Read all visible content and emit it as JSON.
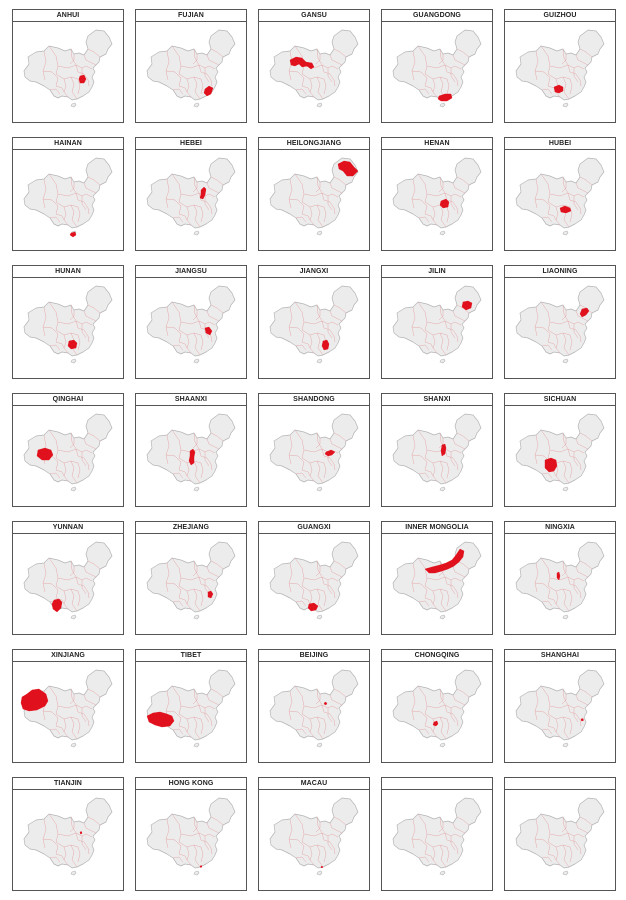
{
  "colors": {
    "land": "#ececec",
    "border": "#e4a0a4",
    "outline": "#b4b4b4",
    "highlight": "#e0101c",
    "frame": "#555555"
  },
  "maps": [
    {
      "name": "ANHUI",
      "region": "anhui"
    },
    {
      "name": "FUJIAN",
      "region": "fujian"
    },
    {
      "name": "GANSU",
      "region": "gansu"
    },
    {
      "name": "GUANGDONG",
      "region": "guangdong"
    },
    {
      "name": "GUIZHOU",
      "region": "guizhou"
    },
    {
      "name": "HAINAN",
      "region": "hainan"
    },
    {
      "name": "HEBEI",
      "region": "hebei"
    },
    {
      "name": "HEILONGJIANG",
      "region": "heilongjiang"
    },
    {
      "name": "HENAN",
      "region": "henan"
    },
    {
      "name": "HUBEI",
      "region": "hubei"
    },
    {
      "name": "HUNAN",
      "region": "hunan"
    },
    {
      "name": "JIANGSU",
      "region": "jiangsu"
    },
    {
      "name": "JIANGXI",
      "region": "jiangxi"
    },
    {
      "name": "JILIN",
      "region": "jilin"
    },
    {
      "name": "LIAONING",
      "region": "liaoning"
    },
    {
      "name": "QINGHAI",
      "region": "qinghai"
    },
    {
      "name": "SHAANXI",
      "region": "shaanxi"
    },
    {
      "name": "SHANDONG",
      "region": "shandong"
    },
    {
      "name": "SHANXI",
      "region": "shanxi"
    },
    {
      "name": "SICHUAN",
      "region": "sichuan"
    },
    {
      "name": "YUNNAN",
      "region": "yunnan"
    },
    {
      "name": "ZHEJIANG",
      "region": "zhejiang"
    },
    {
      "name": "GUANGXI",
      "region": "guangxi"
    },
    {
      "name": "INNER MONGOLIA",
      "region": "inner-mongolia"
    },
    {
      "name": "NINGXIA",
      "region": "ningxia"
    },
    {
      "name": "XINJIANG",
      "region": "xinjiang"
    },
    {
      "name": "TIBET",
      "region": "tibet"
    },
    {
      "name": "BEIJING",
      "region": "beijing"
    },
    {
      "name": "CHONGQING",
      "region": "chongqing"
    },
    {
      "name": "SHANGHAI",
      "region": "shanghai"
    },
    {
      "name": "TIANJIN",
      "region": "tianjin"
    },
    {
      "name": "HONG KONG",
      "region": "hong-kong"
    },
    {
      "name": "MACAU",
      "region": "macau"
    },
    {
      "name": "",
      "region": ""
    },
    {
      "name": "",
      "region": ""
    }
  ]
}
